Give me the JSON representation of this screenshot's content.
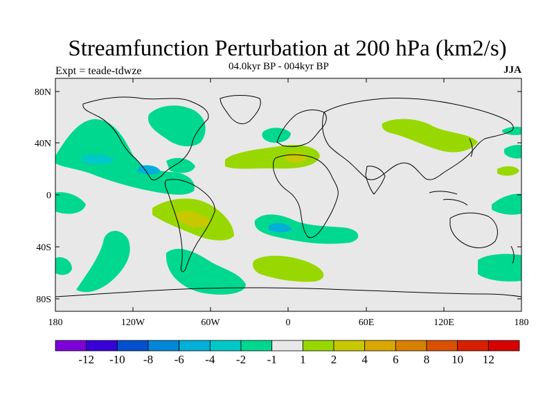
{
  "title": "Streamfunction Perturbation at 200 hPa (km2/s)",
  "subtitle": "04.0kyr BP - 004kyr BP",
  "experiment": "Expt = teade-tdwze",
  "season": "JJA",
  "lat_labels": [
    "80N",
    "40N",
    "0",
    "40S",
    "80S"
  ],
  "lon_labels": [
    "180",
    "120W",
    "60W",
    "0",
    "60E",
    "120E",
    "180"
  ],
  "colors": {
    "ocean": "#e8e8e8",
    "neg1": "#00d890",
    "neg2": "#00c8c8",
    "neg3": "#00b0d8",
    "pos1": "#98d800",
    "pos2": "#c8c800"
  },
  "colorbar": {
    "colors": [
      "#7d00d8",
      "#3800d8",
      "#0050d0",
      "#0088d8",
      "#00b0d8",
      "#00c8c8",
      "#00d890",
      "#e8e8e8",
      "#98d800",
      "#c8c800",
      "#d8a800",
      "#d88000",
      "#d85000",
      "#d82000",
      "#d80000"
    ],
    "labels": [
      "-12",
      "-10",
      "-8",
      "-6",
      "-4",
      "-2",
      "-1",
      "1",
      "2",
      "4",
      "6",
      "8",
      "10",
      "12"
    ]
  }
}
